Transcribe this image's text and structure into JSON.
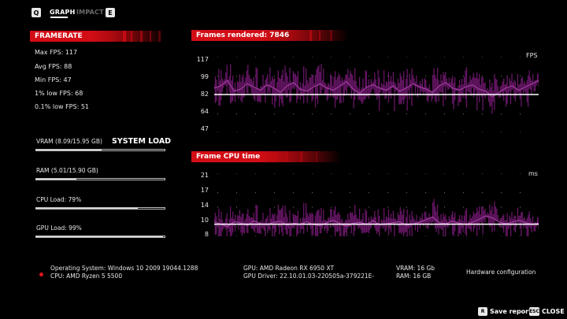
{
  "tabs": {
    "left_key": "Q",
    "right_key": "E",
    "items": [
      {
        "label": "GRAPH",
        "active": true
      },
      {
        "label": "IMPACT",
        "active": false
      }
    ]
  },
  "framerate": {
    "title": "FRAMERATE",
    "stats": [
      "Max FPS: 117",
      "Avg FPS: 88",
      "Min FPS: 47",
      "1% low FPS: 68",
      "0.1% low FPS: 51"
    ]
  },
  "system_load": {
    "title": "SYSTEM LOAD",
    "items": [
      {
        "label": "VRAM (8.09/15.95 GB)",
        "value": 0.507
      },
      {
        "label": "RAM (5.01/15.90 GB)",
        "value": 0.315
      },
      {
        "label": "CPU Load: 79%",
        "value": 0.79
      },
      {
        "label": "GPU Load: 99%",
        "value": 0.99
      }
    ]
  },
  "fps_chart": {
    "title": "Frames rendered: 7846",
    "unit": "FPS",
    "y_ticks": [
      "117",
      "99",
      "82",
      "64",
      "47"
    ]
  },
  "cpu_chart": {
    "title": "Frame CPU time",
    "unit": "ms",
    "y_ticks": [
      "21",
      "17",
      "14",
      "10",
      "8"
    ]
  },
  "chart_data": [
    {
      "type": "line",
      "title": "Frames rendered: 7846",
      "ylabel": "FPS",
      "ylim": [
        47,
        117
      ],
      "y_ticks": [
        117,
        99,
        82,
        64,
        47
      ],
      "average_line": 82,
      "series": [
        {
          "values": [
            88,
            90,
            95,
            85,
            87,
            92,
            89,
            86,
            91,
            88,
            84,
            90,
            93,
            87,
            85,
            89,
            92,
            88,
            86,
            90,
            94,
            87,
            83,
            89,
            91,
            88,
            86,
            90,
            85,
            88,
            92,
            89,
            87,
            84,
            90,
            93,
            88,
            86,
            89,
            91,
            87,
            85,
            80,
            84,
            88,
            90,
            86,
            89,
            92,
            95
          ]
        }
      ]
    },
    {
      "type": "line",
      "title": "Frame CPU time",
      "ylabel": "ms",
      "ylim": [
        8,
        21
      ],
      "y_ticks": [
        21,
        17,
        14,
        10,
        8
      ],
      "average_line": 10.5,
      "series": [
        {
          "values": [
            11,
            10.5,
            10,
            11,
            10.8,
            10.2,
            11.2,
            10.6,
            10.4,
            10.9,
            11.1,
            10.3,
            10.7,
            10.5,
            11,
            10.4,
            10.2,
            10.8,
            11.3,
            10.6,
            10.1,
            10.7,
            10.9,
            10.5,
            11.2,
            10.4,
            10.6,
            10.8,
            11,
            10.3,
            10.5,
            10.9,
            11.4,
            12,
            10.8,
            10.6,
            11.1,
            10.7,
            10.4,
            10.9,
            11.5,
            12.2,
            11.8,
            11,
            10.6,
            10.9,
            11.3,
            10.8,
            10.5,
            10.7
          ]
        }
      ]
    }
  ],
  "footer": {
    "os": "Operating System: Windows 10 2009 19044.1288",
    "cpu": "CPU: AMD Ryzen 5 5500",
    "gpu": "GPU: AMD Radeon RX 6950 XT",
    "gpu_driver": "GPU Driver: 22.10.01.03-220505a-379221E-",
    "vram": "VRAM: 16 Gb",
    "ram": "RAM: 16 GB",
    "hardware_config": "Hardware configuration"
  },
  "actions": {
    "save_key": "R",
    "save_label": "Save report",
    "close_key": "ESC",
    "close_label": "CLOSE"
  },
  "colors": {
    "accent_red": "#d30d15",
    "plot_purple": "#7a1a78",
    "background": "#000000"
  }
}
